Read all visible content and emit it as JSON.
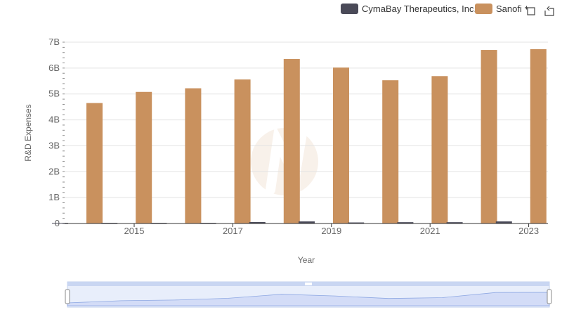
{
  "chart_data": {
    "type": "bar",
    "title": "",
    "xlabel": "Year",
    "ylabel": "R&D Expenses",
    "x_ticks": [
      "2015",
      "2017",
      "2019",
      "2021",
      "2023"
    ],
    "y_ticks": [
      "0",
      "1B",
      "2B",
      "3B",
      "4B",
      "5B",
      "6B",
      "7B"
    ],
    "ylim": [
      0,
      7000000000
    ],
    "categories": [
      "2014",
      "2015",
      "2016",
      "2017",
      "2018",
      "2019",
      "2020",
      "2021",
      "2022",
      "2023"
    ],
    "series": [
      {
        "name": "CymaBay Therapeutics, Inc.",
        "color": "#4a4a58",
        "values": [
          20000000,
          20000000,
          20000000,
          25000000,
          55000000,
          80000000,
          40000000,
          50000000,
          50000000,
          80000000
        ]
      },
      {
        "name": "Sanofi",
        "color": "#c9915e",
        "values": [
          4650000000,
          5080000000,
          5220000000,
          5560000000,
          6350000000,
          6020000000,
          5530000000,
          5690000000,
          6700000000,
          6730000000
        ]
      }
    ],
    "grid": true,
    "legend_position": "top-right",
    "has_range_slider": true
  },
  "toolbar": {
    "icons": [
      "crosshair-zoom-icon",
      "reset-zoom-icon"
    ]
  }
}
